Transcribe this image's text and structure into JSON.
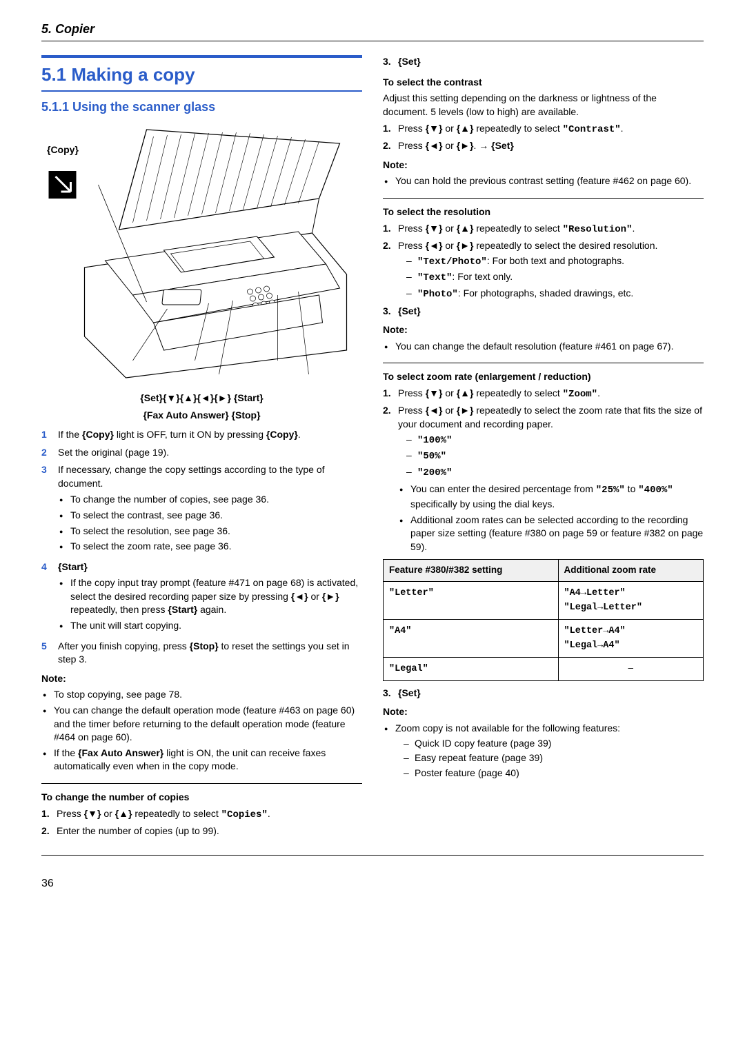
{
  "header": {
    "chapter": "5. Copier"
  },
  "section": {
    "number_title": "5.1 Making a copy",
    "subsection": "5.1.1 Using the scanner glass"
  },
  "figure": {
    "copy_label": "{Copy}",
    "button_row1": "{Set}{▼}{▲}{◄}{►}   {Start}",
    "button_row2": "{Fax Auto Answer}   {Stop}"
  },
  "steps": [
    {
      "n": "1",
      "body_html": "If the <span class='key'>{Copy}</span> light is OFF, turn it ON by pressing <span class='key'>{Copy}</span>."
    },
    {
      "n": "2",
      "body_html": "Set the original (page 19)."
    },
    {
      "n": "3",
      "body_html": "If necessary, change the copy settings according to the type of document.",
      "bullets": [
        "To change the number of copies, see page 36.",
        "To select the contrast, see page 36.",
        "To select the resolution, see page 36.",
        "To select the zoom rate, see page 36."
      ]
    },
    {
      "n": "4",
      "body_html": "<span class='key'>{Start}</span>",
      "bullets": [
        "If the copy input tray prompt (feature #471 on page 68) is activated, select the desired recording paper size by pressing <span class='key'>{◄}</span> or <span class='key'>{►}</span> repeatedly, then press <span class='key'>{Start}</span> again.",
        "The unit will start copying."
      ]
    },
    {
      "n": "5",
      "body_html": "After you finish copying, press <span class='key'>{Stop}</span> to reset the settings you set in step 3."
    }
  ],
  "note1": {
    "label": "Note:",
    "bullets": [
      "To stop copying, see page 78.",
      "You can change the default operation mode (feature #463 on page 60) and the timer before returning to the default operation mode (feature #464 on page 60).",
      "If the <span class='key'>{Fax Auto Answer}</span> light is ON, the unit can receive faxes automatically even when in the copy mode."
    ]
  },
  "change_copies": {
    "heading": "To change the number of copies",
    "items": [
      "Press <span class='key'>{▼}</span> or <span class='key'>{▲}</span> repeatedly to select <span class='mono'>\"Copies\"</span>.",
      "Enter the number of copies (up to 99)."
    ],
    "step3": "<span class='key'>{Set}</span>"
  },
  "contrast": {
    "heading": "To select the contrast",
    "intro": "Adjust this setting depending on the darkness or lightness of the document. 5 levels (low to high) are available.",
    "items": [
      "Press <span class='key'>{▼}</span> or <span class='key'>{▲}</span> repeatedly to select <span class='mono'>\"Contrast\"</span>.",
      "Press <span class='key'>{◄}</span> or <span class='key'>{►}</span>. <span class='arrow-sym'>→</span> <span class='key'>{Set}</span>"
    ],
    "note_label": "Note:",
    "note_bullets": [
      "You can hold the previous contrast setting (feature #462 on page 60)."
    ]
  },
  "resolution": {
    "heading": "To select the resolution",
    "items": [
      "Press <span class='key'>{▼}</span> or <span class='key'>{▲}</span> repeatedly to select <span class='mono'>\"Resolution\"</span>.",
      "Press <span class='key'>{◄}</span> or <span class='key'>{►}</span> repeatedly to select the desired resolution."
    ],
    "dashes": [
      "<span class='mono'>\"Text/Photo\"</span>: For both text and photographs.",
      "<span class='mono'>\"Text\"</span>: For text only.",
      "<span class='mono'>\"Photo\"</span>: For photographs, shaded drawings, etc."
    ],
    "step3": "<span class='key'>{Set}</span>",
    "note_label": "Note:",
    "note_bullets": [
      "You can change the default resolution (feature #461 on page 67)."
    ]
  },
  "zoom": {
    "heading": "To select zoom rate (enlargement / reduction)",
    "items": [
      "Press <span class='key'>{▼}</span> or <span class='key'>{▲}</span> repeatedly to select <span class='mono'>\"Zoom\"</span>.",
      "Press <span class='key'>{◄}</span> or <span class='key'>{►}</span> repeatedly to select the zoom rate that fits the size of your document and recording paper."
    ],
    "dashes": [
      "<span class='mono'>\"100%\"</span>",
      "<span class='mono'>\"50%\"</span>",
      "<span class='mono'>\"200%\"</span>"
    ],
    "extra_bullets": [
      "You can enter the desired percentage from <span class='mono'>\"25%\"</span> to <span class='mono'>\"400%\"</span> specifically by using the dial keys.",
      "Additional zoom rates can be selected according to the recording paper size setting (feature #380 on page 59 or feature #382 on page 59)."
    ],
    "table": {
      "h1": "Feature #380/#382 setting",
      "h2": "Additional zoom rate",
      "rows": [
        {
          "c1": "<span class='mono'>\"Letter\"</span>",
          "c2": "<span class='mono'>\"A4→Letter\"</span><br><span class='mono'>\"Legal→Letter\"</span>"
        },
        {
          "c1": "<span class='mono'>\"A4\"</span>",
          "c2": "<span class='mono'>\"Letter→A4\"</span><br><span class='mono'>\"Legal→A4\"</span>"
        },
        {
          "c1": "<span class='mono'>\"Legal\"</span>",
          "c2": "–"
        }
      ]
    },
    "step3": "<span class='key'>{Set}</span>",
    "note_label": "Note:",
    "note_bullets": [
      "Zoom copy is not available for the following features:"
    ],
    "note_dashes": [
      "Quick ID copy feature (page 39)",
      "Easy repeat feature (page 39)",
      "Poster feature (page 40)"
    ]
  },
  "page_number": "36"
}
